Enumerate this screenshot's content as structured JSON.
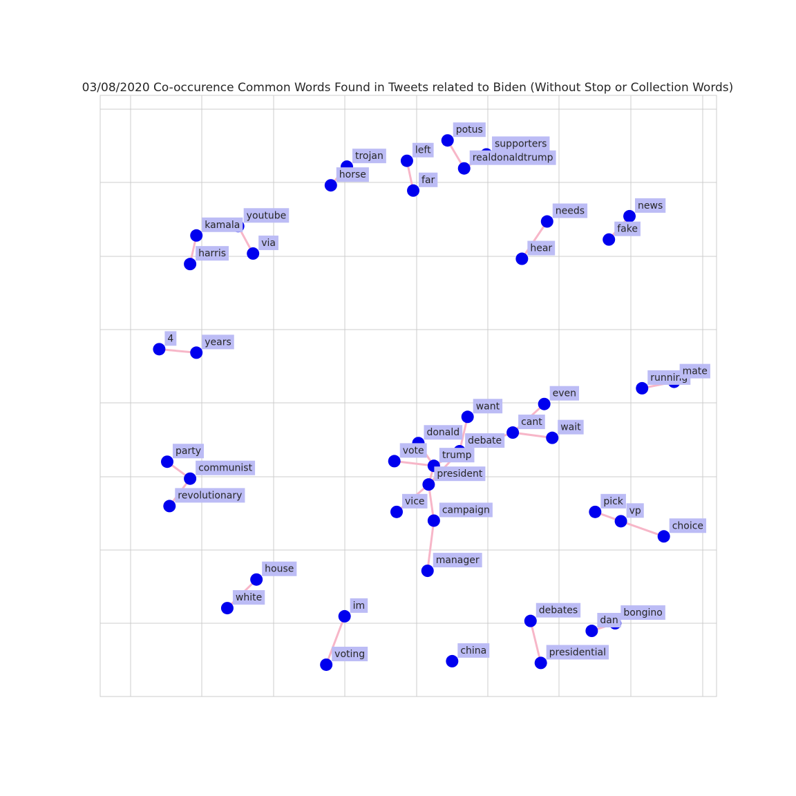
{
  "chart_data": {
    "type": "network",
    "title": "03/08/2020 Co-occurence Common Words Found in Tweets related to Biden (Without Stop or Collection Words)",
    "grid": true,
    "axes_ticks_visible": false,
    "colors": {
      "node": "#0000ee",
      "edge": "#f7b6c8",
      "label_bg": "#bcbcf5",
      "grid": "#cccccc",
      "text": "#262626"
    },
    "nodes": [
      {
        "id": "potus",
        "x": 0.554,
        "y": 0.95
      },
      {
        "id": "supporters",
        "x": 0.622,
        "y": 0.926
      },
      {
        "id": "realdonaldtrump",
        "x": 0.583,
        "y": 0.902
      },
      {
        "id": "left",
        "x": 0.483,
        "y": 0.915
      },
      {
        "id": "far",
        "x": 0.494,
        "y": 0.864
      },
      {
        "id": "trojan",
        "x": 0.378,
        "y": 0.905
      },
      {
        "id": "horse",
        "x": 0.35,
        "y": 0.873
      },
      {
        "id": "kamala",
        "x": 0.115,
        "y": 0.787
      },
      {
        "id": "harris",
        "x": 0.104,
        "y": 0.738
      },
      {
        "id": "youtube",
        "x": 0.188,
        "y": 0.803
      },
      {
        "id": "via",
        "x": 0.214,
        "y": 0.756
      },
      {
        "id": "needs",
        "x": 0.728,
        "y": 0.811
      },
      {
        "id": "hear",
        "x": 0.684,
        "y": 0.747
      },
      {
        "id": "news",
        "x": 0.872,
        "y": 0.82
      },
      {
        "id": "fake",
        "x": 0.836,
        "y": 0.78
      },
      {
        "id": "4",
        "x": 0.05,
        "y": 0.592
      },
      {
        "id": "years",
        "x": 0.115,
        "y": 0.586
      },
      {
        "id": "running",
        "x": 0.894,
        "y": 0.525
      },
      {
        "id": "mate",
        "x": 0.95,
        "y": 0.536
      },
      {
        "id": "even",
        "x": 0.723,
        "y": 0.498
      },
      {
        "id": "want",
        "x": 0.589,
        "y": 0.476
      },
      {
        "id": "cant",
        "x": 0.668,
        "y": 0.449
      },
      {
        "id": "wait",
        "x": 0.737,
        "y": 0.44
      },
      {
        "id": "donald",
        "x": 0.503,
        "y": 0.431
      },
      {
        "id": "debate",
        "x": 0.575,
        "y": 0.417
      },
      {
        "id": "vote",
        "x": 0.461,
        "y": 0.4
      },
      {
        "id": "trump",
        "x": 0.53,
        "y": 0.392
      },
      {
        "id": "president",
        "x": 0.521,
        "y": 0.36
      },
      {
        "id": "vice",
        "x": 0.465,
        "y": 0.313
      },
      {
        "id": "campaign",
        "x": 0.53,
        "y": 0.298
      },
      {
        "id": "manager",
        "x": 0.519,
        "y": 0.212
      },
      {
        "id": "party",
        "x": 0.064,
        "y": 0.399
      },
      {
        "id": "communist",
        "x": 0.104,
        "y": 0.37
      },
      {
        "id": "revolutionary",
        "x": 0.068,
        "y": 0.323
      },
      {
        "id": "pick",
        "x": 0.812,
        "y": 0.313
      },
      {
        "id": "vp",
        "x": 0.857,
        "y": 0.297
      },
      {
        "id": "choice",
        "x": 0.932,
        "y": 0.271
      },
      {
        "id": "house",
        "x": 0.22,
        "y": 0.197
      },
      {
        "id": "white",
        "x": 0.169,
        "y": 0.148
      },
      {
        "id": "im",
        "x": 0.374,
        "y": 0.134
      },
      {
        "id": "voting",
        "x": 0.342,
        "y": 0.051
      },
      {
        "id": "china",
        "x": 0.562,
        "y": 0.057
      },
      {
        "id": "debates",
        "x": 0.699,
        "y": 0.126
      },
      {
        "id": "presidential",
        "x": 0.717,
        "y": 0.054
      },
      {
        "id": "dan",
        "x": 0.806,
        "y": 0.109
      },
      {
        "id": "bongino",
        "x": 0.847,
        "y": 0.122
      }
    ],
    "edges": [
      [
        "potus",
        "realdonaldtrump"
      ],
      [
        "supporters",
        "realdonaldtrump"
      ],
      [
        "left",
        "far"
      ],
      [
        "trojan",
        "horse"
      ],
      [
        "kamala",
        "harris"
      ],
      [
        "youtube",
        "via"
      ],
      [
        "needs",
        "hear"
      ],
      [
        "news",
        "fake"
      ],
      [
        "4",
        "years"
      ],
      [
        "running",
        "mate"
      ],
      [
        "even",
        "cant"
      ],
      [
        "cant",
        "wait"
      ],
      [
        "cant",
        "debate"
      ],
      [
        "want",
        "debate"
      ],
      [
        "debate",
        "trump"
      ],
      [
        "debate",
        "president"
      ],
      [
        "donald",
        "trump"
      ],
      [
        "vote",
        "trump"
      ],
      [
        "trump",
        "president"
      ],
      [
        "president",
        "vice"
      ],
      [
        "president",
        "campaign"
      ],
      [
        "campaign",
        "manager"
      ],
      [
        "party",
        "communist"
      ],
      [
        "communist",
        "revolutionary"
      ],
      [
        "pick",
        "vp"
      ],
      [
        "vp",
        "choice"
      ],
      [
        "house",
        "white"
      ],
      [
        "im",
        "voting"
      ],
      [
        "debates",
        "presidential"
      ],
      [
        "dan",
        "bongino"
      ]
    ]
  }
}
